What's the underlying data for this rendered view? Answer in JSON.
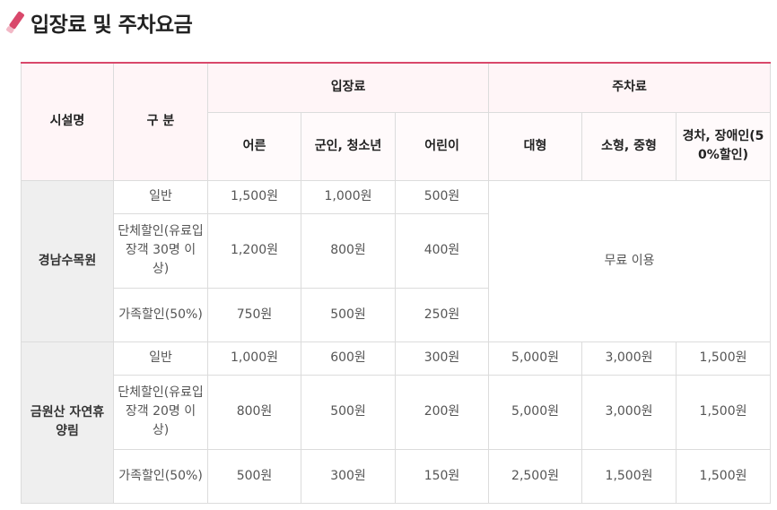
{
  "page": {
    "title": "입장료 및 주차요금",
    "icon": "pencil-icon",
    "accent_color": "#d9486b"
  },
  "table": {
    "headers": {
      "facility": "시설명",
      "category": "구 분",
      "admission": "입장료",
      "parking": "주차료",
      "admission_cols": [
        "어른",
        "군인, 청소년",
        "어린이"
      ],
      "parking_cols": [
        "대형",
        "소형, 중형",
        "경차, 장애인(50%할인)"
      ]
    },
    "facilities": [
      {
        "name": "경남수목원",
        "parking_note": "무료 이용",
        "rows": [
          {
            "category": "일반",
            "adult": "1,500원",
            "youth": "1,000원",
            "child": "500원"
          },
          {
            "category": "단체할인(유료입장객 30명 이상)",
            "adult": "1,200원",
            "youth": "800원",
            "child": "400원"
          },
          {
            "category": "가족할인(50%)",
            "adult": "750원",
            "youth": "500원",
            "child": "250원"
          }
        ]
      },
      {
        "name": "금원산 자연휴양림",
        "rows": [
          {
            "category": "일반",
            "adult": "1,000원",
            "youth": "600원",
            "child": "300원",
            "large": "5,000원",
            "mid": "3,000원",
            "compact": "1,500원"
          },
          {
            "category": "단체할인(유료입장객 20명 이상)",
            "adult": "800원",
            "youth": "500원",
            "child": "200원",
            "large": "5,000원",
            "mid": "3,000원",
            "compact": "1,500원"
          },
          {
            "category": "가족할인(50%)",
            "adult": "500원",
            "youth": "300원",
            "child": "150원",
            "large": "2,500원",
            "mid": "1,500원",
            "compact": "1,500원"
          }
        ]
      }
    ]
  }
}
